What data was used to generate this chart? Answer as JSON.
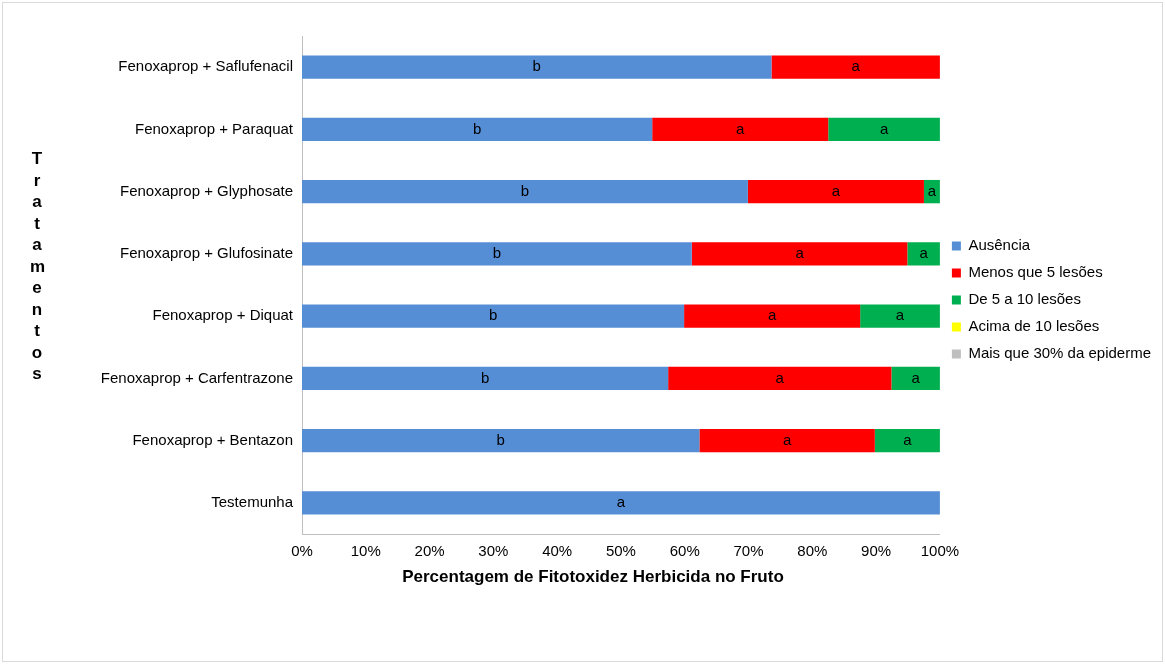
{
  "chart_data": {
    "type": "bar",
    "orientation": "horizontal",
    "stacked": true,
    "xlabel": "Percentagem de Fitotoxidez Herbicida no Fruto",
    "ylabel": "Tratamentos",
    "categories": [
      "Fenoxaprop + Saflufenacil",
      "Fenoxaprop + Paraquat",
      "Fenoxaprop + Glyphosate",
      "Fenoxaprop + Glufosinate",
      "Fenoxaprop + Diquat",
      "Fenoxaprop + Carfentrazone",
      "Fenoxaprop + Bentazon",
      "Testemunha"
    ],
    "series": [
      {
        "name": "Ausência",
        "color": "#558ed5",
        "values": [
          73.6,
          54.9,
          69.9,
          61.1,
          59.9,
          57.4,
          62.3,
          100
        ],
        "value_labels": [
          "b",
          "b",
          "b",
          "b",
          "b",
          "b",
          "b",
          "a"
        ]
      },
      {
        "name": "Menos que 5 lesões",
        "color": "#ff0000",
        "values": [
          26.4,
          27.6,
          27.6,
          33.8,
          27.6,
          35.0,
          27.5,
          0
        ],
        "value_labels": [
          "a",
          "a",
          "a",
          "a",
          "a",
          "a",
          "a",
          null
        ]
      },
      {
        "name": "De 5 a 10 lesões",
        "color": "#00b050",
        "values": [
          0,
          17.5,
          2.5,
          5.1,
          12.5,
          7.6,
          10.2,
          0
        ],
        "value_labels": [
          null,
          "a",
          "a",
          "a",
          "a",
          "a",
          "a",
          null
        ]
      },
      {
        "name": "Acima de 10 lesões",
        "color": "#ffff00",
        "values": [
          0,
          0,
          0,
          0,
          0,
          0,
          0,
          0
        ]
      },
      {
        "name": "Mais que 30% da epiderme",
        "color": "#bfbfbf",
        "values": [
          0,
          0,
          0,
          0,
          0,
          0,
          0,
          0
        ]
      }
    ],
    "xlim": [
      0,
      100
    ],
    "xticks": [
      {
        "value": 0,
        "label": "0%"
      },
      {
        "value": 10,
        "label": "10%"
      },
      {
        "value": 20,
        "label": "20%"
      },
      {
        "value": 30,
        "label": "30%"
      },
      {
        "value": 40,
        "label": "40%"
      },
      {
        "value": 50,
        "label": "50%"
      },
      {
        "value": 60,
        "label": "60%"
      },
      {
        "value": 70,
        "label": "70%"
      },
      {
        "value": 80,
        "label": "80%"
      },
      {
        "value": 90,
        "label": "90%"
      },
      {
        "value": 100,
        "label": "100%"
      }
    ],
    "grid": false,
    "legend": "right"
  }
}
